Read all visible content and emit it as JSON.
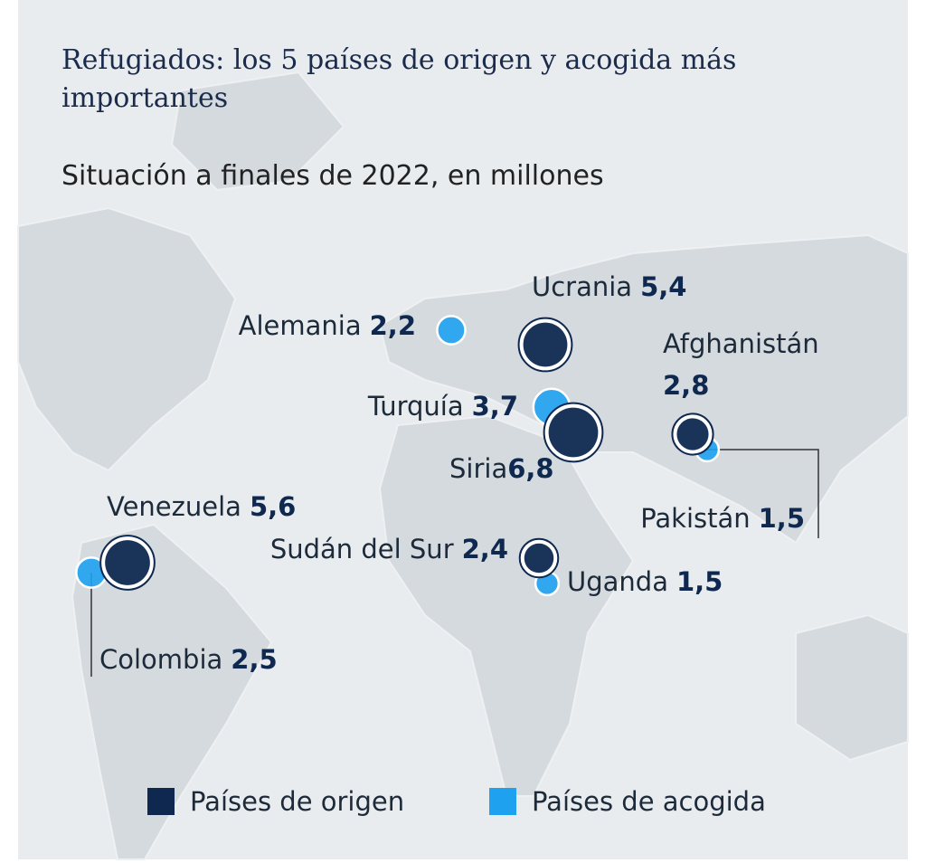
{
  "title": "Refugiados: los 5 países de origen y acogida más importantes",
  "subtitle": "Situación a finales de 2022, en millones",
  "legend": [
    {
      "name": "Países de origen",
      "color": "#0e2850"
    },
    {
      "name": "Países de acogida",
      "color": "#1ea1ef"
    }
  ],
  "points": [
    {
      "name": "Ucrania",
      "value": 5.4,
      "value_label": "5,4",
      "group": 0
    },
    {
      "name": "Siria",
      "value": 6.8,
      "value_label": "6,8",
      "group": 0
    },
    {
      "name": "Afghanistán",
      "value": 2.8,
      "value_label": "2,8",
      "group": 0
    },
    {
      "name": "Venezuela",
      "value": 5.6,
      "value_label": "5,6",
      "group": 0
    },
    {
      "name": "Sudán del Sur",
      "value": 2.4,
      "value_label": "2,4",
      "group": 0
    },
    {
      "name": "Alemania",
      "value": 2.2,
      "value_label": "2,2",
      "group": 1
    },
    {
      "name": "Turquía",
      "value": 3.7,
      "value_label": "3,7",
      "group": 1
    },
    {
      "name": "Pakistán",
      "value": 1.5,
      "value_label": "1,5",
      "group": 1
    },
    {
      "name": "Uganda",
      "value": 1.5,
      "value_label": "1,5",
      "group": 1
    },
    {
      "name": "Colombia",
      "value": 2.5,
      "value_label": "2,5",
      "group": 1
    }
  ]
}
